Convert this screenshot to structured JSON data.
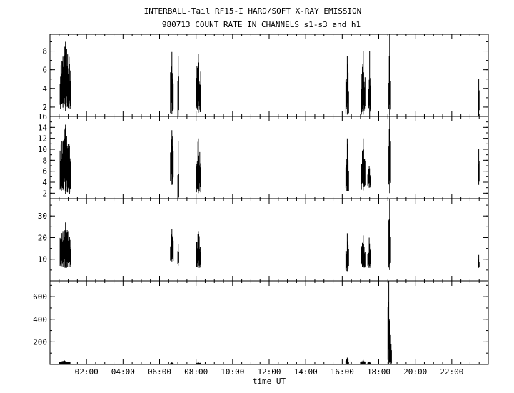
{
  "title": "INTERBALL-Tail RF15-I HARD/SOFT X-RAY EMISSION",
  "subtitle": "980713  COUNT RATE IN CHANNELS s1-s3 and h1",
  "chart_data": {
    "type": "line",
    "title": "INTERBALL-Tail RF15-I HARD/SOFT X-RAY EMISSION",
    "subtitle": "980713  COUNT RATE IN CHANNELS s1-s3 and h1",
    "xlabel": "time UT",
    "xlim": [
      0,
      24
    ],
    "x_ticks": [
      2,
      4,
      6,
      8,
      10,
      12,
      14,
      16,
      18,
      20,
      22
    ],
    "x_tick_labels": [
      "02:00",
      "04:00",
      "06:00",
      "08:00",
      "10:00",
      "12:00",
      "14:00",
      "16:00",
      "18:00",
      "20:00",
      "22:00"
    ],
    "grid": false,
    "panels": [
      {
        "channel": "s1",
        "ylim": [
          1,
          9.8
        ],
        "y_ticks": [
          2,
          4,
          6,
          8
        ],
        "y_tick_labels": [
          "2",
          "4",
          "6",
          "8"
        ],
        "bursts": [
          {
            "x0": 0.55,
            "x1": 1.15,
            "ymin": 1.6,
            "ymax": 9.0
          },
          {
            "x0": 6.6,
            "x1": 6.75,
            "ymin": 1.3,
            "ymax": 7.9
          },
          {
            "x0": 7.0,
            "x1": 7.05,
            "ymin": 1.0,
            "ymax": 7.5
          },
          {
            "x0": 8.0,
            "x1": 8.25,
            "ymin": 1.4,
            "ymax": 7.7
          },
          {
            "x0": 16.2,
            "x1": 16.35,
            "ymin": 1.2,
            "ymax": 7.5
          },
          {
            "x0": 17.05,
            "x1": 17.25,
            "ymin": 1.2,
            "ymax": 8.0
          },
          {
            "x0": 17.45,
            "x1": 17.55,
            "ymin": 1.3,
            "ymax": 8.0
          },
          {
            "x0": 18.55,
            "x1": 18.65,
            "ymin": 1.1,
            "ymax": 9.8
          },
          {
            "x0": 23.45,
            "x1": 23.5,
            "ymin": 1.0,
            "ymax": 5.0
          }
        ]
      },
      {
        "channel": "s2",
        "ylim": [
          1,
          16
        ],
        "y_ticks": [
          2,
          4,
          6,
          8,
          10,
          12,
          14,
          16
        ],
        "y_tick_labels": [
          "2",
          "4",
          "6",
          "8",
          "10",
          "12",
          "14",
          "16"
        ],
        "bursts": [
          {
            "x0": 0.55,
            "x1": 1.15,
            "ymin": 1.8,
            "ymax": 14.5
          },
          {
            "x0": 6.6,
            "x1": 6.75,
            "ymin": 3.5,
            "ymax": 13.5
          },
          {
            "x0": 7.0,
            "x1": 7.05,
            "ymin": 1.2,
            "ymax": 11.5
          },
          {
            "x0": 8.0,
            "x1": 8.25,
            "ymin": 2.0,
            "ymax": 12.0
          },
          {
            "x0": 16.2,
            "x1": 16.35,
            "ymin": 2.3,
            "ymax": 12.0
          },
          {
            "x0": 17.05,
            "x1": 17.25,
            "ymin": 2.5,
            "ymax": 12.0
          },
          {
            "x0": 17.4,
            "x1": 17.55,
            "ymin": 3.0,
            "ymax": 7.0
          },
          {
            "x0": 18.55,
            "x1": 18.65,
            "ymin": 2.0,
            "ymax": 16.0
          },
          {
            "x0": 23.45,
            "x1": 23.5,
            "ymin": 3.5,
            "ymax": 10.0
          }
        ]
      },
      {
        "channel": "s3",
        "ylim": [
          0,
          38
        ],
        "y_ticks": [
          10,
          20,
          30
        ],
        "y_tick_labels": [
          "10",
          "20",
          "30"
        ],
        "bursts": [
          {
            "x0": 0.55,
            "x1": 1.15,
            "ymin": 6.0,
            "ymax": 27.0
          },
          {
            "x0": 6.6,
            "x1": 6.75,
            "ymin": 9.0,
            "ymax": 24.0
          },
          {
            "x0": 7.0,
            "x1": 7.05,
            "ymin": 7.0,
            "ymax": 17.0
          },
          {
            "x0": 8.0,
            "x1": 8.25,
            "ymin": 6.0,
            "ymax": 23.0
          },
          {
            "x0": 16.2,
            "x1": 16.35,
            "ymin": 4.5,
            "ymax": 22.0
          },
          {
            "x0": 17.05,
            "x1": 17.25,
            "ymin": 6.0,
            "ymax": 21.0
          },
          {
            "x0": 17.4,
            "x1": 17.55,
            "ymin": 6.0,
            "ymax": 20.0
          },
          {
            "x0": 18.55,
            "x1": 18.65,
            "ymin": 5.0,
            "ymax": 38.0
          },
          {
            "x0": 23.45,
            "x1": 23.5,
            "ymin": 6.0,
            "ymax": 12.0
          }
        ]
      },
      {
        "channel": "h1",
        "ylim": [
          0,
          740
        ],
        "y_ticks": [
          200,
          400,
          600
        ],
        "y_tick_labels": [
          "200",
          "400",
          "600"
        ],
        "bursts": [
          {
            "x0": 0.5,
            "x1": 1.1,
            "ymin": 0,
            "ymax": 35
          },
          {
            "x0": 6.6,
            "x1": 6.75,
            "ymin": 0,
            "ymax": 20
          },
          {
            "x0": 8.0,
            "x1": 8.25,
            "ymin": 0,
            "ymax": 22
          },
          {
            "x0": 16.2,
            "x1": 16.35,
            "ymin": 0,
            "ymax": 60
          },
          {
            "x0": 17.05,
            "x1": 17.25,
            "ymin": 0,
            "ymax": 40
          },
          {
            "x0": 17.4,
            "x1": 17.55,
            "ymin": 0,
            "ymax": 25
          },
          {
            "x0": 18.5,
            "x1": 18.6,
            "ymin": 0,
            "ymax": 740
          },
          {
            "x0": 18.6,
            "x1": 18.7,
            "ymin": 0,
            "ymax": 260
          }
        ]
      }
    ]
  }
}
